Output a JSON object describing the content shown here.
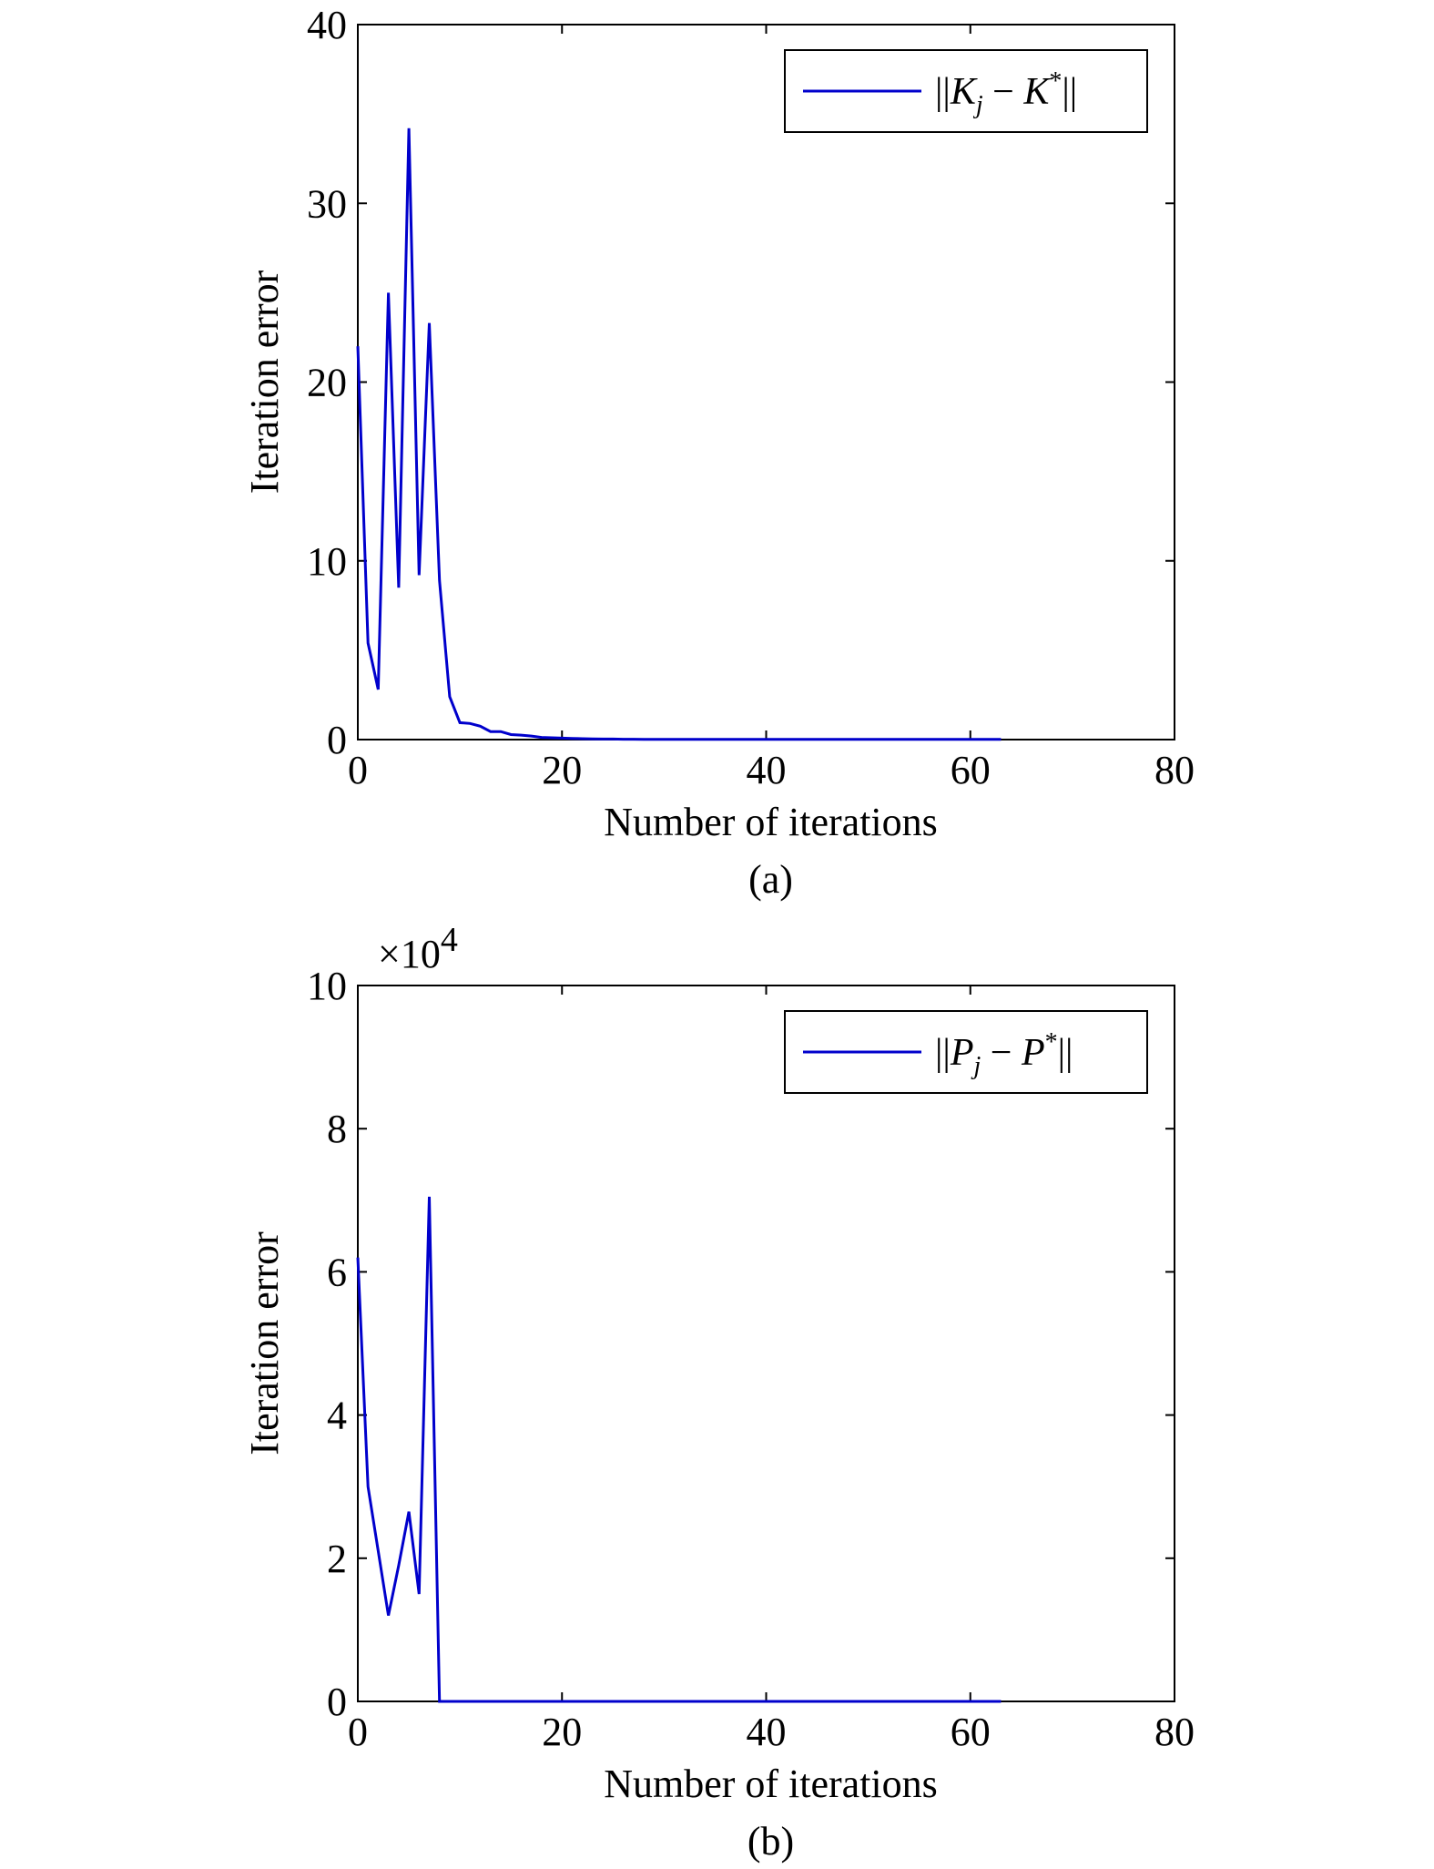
{
  "chart_data": [
    {
      "type": "line",
      "panel": "a",
      "caption": "(a)",
      "xlabel": "Number of iterations",
      "ylabel": "Iteration error",
      "xlim": [
        0,
        80
      ],
      "ylim": [
        0,
        40
      ],
      "xticks": [
        0,
        20,
        40,
        60,
        80
      ],
      "yticks": [
        0,
        10,
        20,
        30,
        40
      ],
      "multiplier": "",
      "legend": {
        "placement": "top-right",
        "norm_left": "||",
        "symbol": "K",
        "sub": "j",
        "minus": " − ",
        "star": "*",
        "norm_right": "||"
      },
      "color": "#0000cc",
      "series": [
        {
          "x": [
            0,
            1,
            2,
            3,
            4,
            5,
            6,
            7,
            8,
            9,
            10,
            11,
            12,
            13,
            14,
            15,
            16,
            17,
            18,
            19,
            20,
            21,
            22,
            23,
            24,
            25,
            26,
            27,
            28,
            29,
            30,
            31,
            32,
            33,
            34,
            35,
            36,
            37,
            38,
            39,
            40,
            41,
            42,
            43,
            44,
            45,
            46,
            47,
            48,
            49,
            50,
            51,
            52,
            53,
            54,
            55,
            56,
            57,
            58,
            59,
            60,
            61,
            62,
            63
          ],
          "y": [
            22,
            5.4,
            2.8,
            25,
            8.5,
            34.2,
            9.2,
            23.3,
            8.9,
            2.4,
            0.95,
            0.9,
            0.75,
            0.45,
            0.45,
            0.28,
            0.25,
            0.2,
            0.12,
            0.1,
            0.08,
            0.06,
            0.05,
            0.04,
            0.03,
            0.03,
            0.02,
            0.02,
            0.01,
            0.01,
            0.01,
            0.01,
            0.01,
            0.01,
            0.01,
            0.01,
            0.01,
            0.01,
            0.01,
            0.01,
            0.01,
            0.01,
            0.01,
            0.01,
            0.01,
            0.01,
            0.01,
            0.01,
            0.01,
            0.01,
            0.01,
            0.01,
            0.01,
            0.01,
            0.01,
            0.01,
            0.01,
            0.01,
            0.01,
            0.01,
            0.01,
            0.01,
            0.01,
            0.01
          ]
        }
      ]
    },
    {
      "type": "line",
      "panel": "b",
      "caption": "(b)",
      "xlabel": "Number of iterations",
      "ylabel": "Iteration error",
      "xlim": [
        0,
        80
      ],
      "ylim": [
        0,
        10
      ],
      "xticks": [
        0,
        20,
        40,
        60,
        80
      ],
      "yticks": [
        0,
        2,
        4,
        6,
        8,
        10
      ],
      "multiplier": {
        "base": "×10",
        "exponent": "4"
      },
      "legend": {
        "placement": "top-right",
        "norm_left": "||",
        "symbol": "P",
        "sub": "j",
        "minus": " − ",
        "star": "*",
        "norm_right": "||"
      },
      "color": "#0000cc",
      "series": [
        {
          "x": [
            0,
            1,
            2,
            3,
            4,
            5,
            6,
            7,
            8,
            9,
            10,
            11,
            12,
            13,
            14,
            15,
            16,
            17,
            18,
            19,
            20,
            21,
            22,
            23,
            24,
            25,
            26,
            27,
            28,
            29,
            30,
            31,
            32,
            33,
            34,
            35,
            36,
            37,
            38,
            39,
            40,
            41,
            42,
            43,
            44,
            45,
            46,
            47,
            48,
            49,
            50,
            51,
            52,
            53,
            54,
            55,
            56,
            57,
            58,
            59,
            60,
            61,
            62,
            63
          ],
          "y": [
            6.2,
            3.0,
            2.1,
            1.2,
            1.9,
            2.65,
            1.5,
            7.05,
            0,
            0,
            0,
            0,
            0,
            0,
            0,
            0,
            0,
            0,
            0,
            0,
            0,
            0,
            0,
            0,
            0,
            0,
            0,
            0,
            0,
            0,
            0,
            0,
            0,
            0,
            0,
            0,
            0,
            0,
            0,
            0,
            0,
            0,
            0,
            0,
            0,
            0,
            0,
            0,
            0,
            0,
            0,
            0,
            0,
            0,
            0,
            0,
            0,
            0,
            0,
            0,
            0,
            0,
            0,
            0
          ]
        }
      ]
    }
  ]
}
